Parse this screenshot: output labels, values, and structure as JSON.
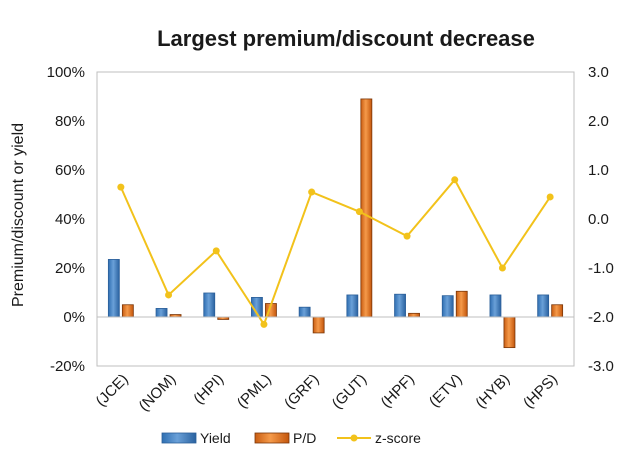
{
  "chart_data": {
    "type": "bar",
    "title": "Largest premium/discount decrease",
    "xlabel": "",
    "ylabel": "Premium/discount or yield",
    "y2label": "",
    "categories": [
      "(JCE)",
      "(NOM)",
      "(HPI)",
      "(PML)",
      "(GRF)",
      "(GUT)",
      "(HPF)",
      "(ETV)",
      "(HYB)",
      "(HPS)"
    ],
    "ylim": [
      -20,
      100
    ],
    "y_ticks": [
      "-20%",
      "0%",
      "20%",
      "40%",
      "60%",
      "80%",
      "100%"
    ],
    "y2lim": [
      -3.0,
      3.0
    ],
    "y2_ticks": [
      "-3.0",
      "-2.0",
      "-1.0",
      "0.0",
      "1.0",
      "2.0",
      "3.0"
    ],
    "grid": false,
    "legend_position": "bottom",
    "series": [
      {
        "name": "Yield",
        "type": "bar",
        "axis": "left",
        "color": "#3f7dc0",
        "values": [
          23.5,
          3.5,
          9.8,
          8.0,
          4.0,
          9.0,
          9.3,
          8.7,
          9.0,
          9.0
        ]
      },
      {
        "name": "P/D",
        "type": "bar",
        "axis": "left",
        "color": "#e9772b",
        "values": [
          5.0,
          1.0,
          -1.0,
          5.5,
          -6.5,
          89.0,
          1.5,
          10.5,
          -12.5,
          5.0
        ]
      },
      {
        "name": "z-score",
        "type": "line",
        "axis": "right",
        "color": "#f2c21b",
        "values": [
          0.65,
          -1.55,
          -0.65,
          -2.15,
          0.55,
          0.15,
          -0.35,
          0.8,
          -1.0,
          0.45
        ]
      }
    ]
  }
}
